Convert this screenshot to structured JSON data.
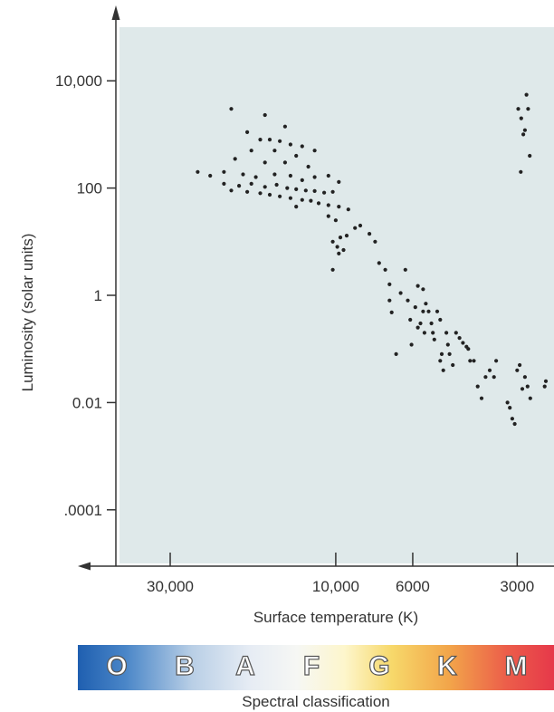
{
  "chart_data": {
    "type": "scatter",
    "xlabel": "Surface temperature (K)",
    "ylabel": "Luminosity (solar units)",
    "x_scale": "log",
    "x_reversed": true,
    "y_scale": "log",
    "xlim": [
      42000,
      2350
    ],
    "ylim": [
      1e-05,
      100000
    ],
    "x_ticks": [
      30000,
      10000,
      6000,
      3000
    ],
    "x_tick_labels": [
      "30,000",
      "10,000",
      "6000",
      "3000"
    ],
    "y_ticks": [
      10000,
      100,
      1,
      0.01,
      0.0001
    ],
    "y_tick_labels": [
      "10,000",
      "100",
      "1",
      "0.01",
      ".0001"
    ],
    "grid": false,
    "marker_color": "#222222",
    "background_color": "#dfe9ea",
    "series": [
      {
        "points": [
          [
            20000,
            3000
          ],
          [
            16000,
            2300
          ],
          [
            14000,
            1400
          ],
          [
            18000,
            1100
          ],
          [
            16500,
            800
          ],
          [
            15500,
            800
          ],
          [
            14500,
            750
          ],
          [
            13500,
            650
          ],
          [
            12500,
            600
          ],
          [
            11500,
            500
          ],
          [
            17500,
            500
          ],
          [
            15000,
            500
          ],
          [
            13000,
            400
          ],
          [
            19500,
            350
          ],
          [
            16000,
            300
          ],
          [
            14000,
            300
          ],
          [
            12000,
            250
          ],
          [
            25000,
            200
          ],
          [
            23000,
            170
          ],
          [
            21000,
            200
          ],
          [
            18500,
            180
          ],
          [
            17000,
            160
          ],
          [
            15000,
            180
          ],
          [
            13500,
            170
          ],
          [
            12500,
            140
          ],
          [
            11500,
            160
          ],
          [
            10500,
            170
          ],
          [
            9800,
            130
          ],
          [
            21000,
            120
          ],
          [
            19000,
            110
          ],
          [
            17500,
            120
          ],
          [
            16000,
            105
          ],
          [
            14800,
            115
          ],
          [
            13800,
            100
          ],
          [
            13000,
            95
          ],
          [
            12200,
            90
          ],
          [
            11500,
            88
          ],
          [
            10800,
            82
          ],
          [
            10200,
            85
          ],
          [
            20000,
            90
          ],
          [
            18000,
            85
          ],
          [
            16500,
            80
          ],
          [
            15500,
            75
          ],
          [
            14500,
            70
          ],
          [
            13500,
            65
          ],
          [
            12500,
            60
          ],
          [
            11800,
            58
          ],
          [
            11200,
            52
          ],
          [
            10500,
            48
          ],
          [
            9800,
            45
          ],
          [
            13000,
            45
          ],
          [
            9200,
            40
          ],
          [
            8800,
            18
          ],
          [
            8500,
            20
          ],
          [
            10500,
            30
          ],
          [
            10000,
            25
          ],
          [
            9700,
            12
          ],
          [
            9300,
            13
          ],
          [
            10200,
            10
          ],
          [
            9900,
            8
          ],
          [
            9500,
            7
          ],
          [
            10200,
            3
          ],
          [
            9800,
            6
          ],
          [
            8000,
            14
          ],
          [
            7700,
            10
          ],
          [
            7500,
            4
          ],
          [
            7200,
            3
          ],
          [
            7000,
            1.6
          ],
          [
            7000,
            0.8
          ],
          [
            6900,
            0.48
          ],
          [
            6700,
            0.08
          ],
          [
            6500,
            1.1
          ],
          [
            6300,
            3
          ],
          [
            6200,
            0.8
          ],
          [
            6100,
            0.35
          ],
          [
            6050,
            0.12
          ],
          [
            5900,
            0.6
          ],
          [
            5800,
            0.25
          ],
          [
            5800,
            1.5
          ],
          [
            5700,
            0.3
          ],
          [
            5600,
            1.3
          ],
          [
            5600,
            0.5
          ],
          [
            5550,
            0.2
          ],
          [
            5500,
            0.7
          ],
          [
            5400,
            0.5
          ],
          [
            5300,
            0.3
          ],
          [
            5250,
            0.2
          ],
          [
            5200,
            0.15
          ],
          [
            5100,
            0.5
          ],
          [
            5000,
            0.06
          ],
          [
            5000,
            0.35
          ],
          [
            4950,
            0.08
          ],
          [
            4900,
            0.04
          ],
          [
            4800,
            0.2
          ],
          [
            4750,
            0.12
          ],
          [
            4700,
            0.08
          ],
          [
            4600,
            0.05
          ],
          [
            4500,
            0.2
          ],
          [
            4400,
            0.16
          ],
          [
            4300,
            0.13
          ],
          [
            4200,
            0.11
          ],
          [
            4150,
            0.1
          ],
          [
            4100,
            0.06
          ],
          [
            4000,
            0.06
          ],
          [
            3900,
            0.02
          ],
          [
            3800,
            0.012
          ],
          [
            3700,
            0.03
          ],
          [
            3600,
            0.04
          ],
          [
            3500,
            0.03
          ],
          [
            3450,
            0.06
          ],
          [
            3200,
            0.01
          ],
          [
            3150,
            0.008
          ],
          [
            3100,
            0.005
          ],
          [
            3050,
            0.004
          ],
          [
            3000,
            0.04
          ],
          [
            2950,
            0.05
          ],
          [
            2900,
            0.018
          ],
          [
            2850,
            0.03
          ],
          [
            2800,
            0.02
          ],
          [
            2750,
            0.012
          ],
          [
            2500,
            0.02
          ],
          [
            2480,
            0.025
          ],
          [
            2980,
            3000
          ],
          [
            2920,
            2000
          ],
          [
            2880,
            1000
          ],
          [
            2850,
            1200
          ],
          [
            2820,
            5500
          ],
          [
            2790,
            3000
          ],
          [
            2760,
            400
          ],
          [
            2930,
            200
          ]
        ]
      }
    ]
  },
  "spectral": {
    "title": "Spectral classification",
    "classes": [
      "O",
      "B",
      "A",
      "F",
      "G",
      "K",
      "M"
    ],
    "gradient": [
      "#1f5fb0",
      "#b9cfe6",
      "#f6f7f4",
      "#f7d86a",
      "#e6384a"
    ]
  }
}
